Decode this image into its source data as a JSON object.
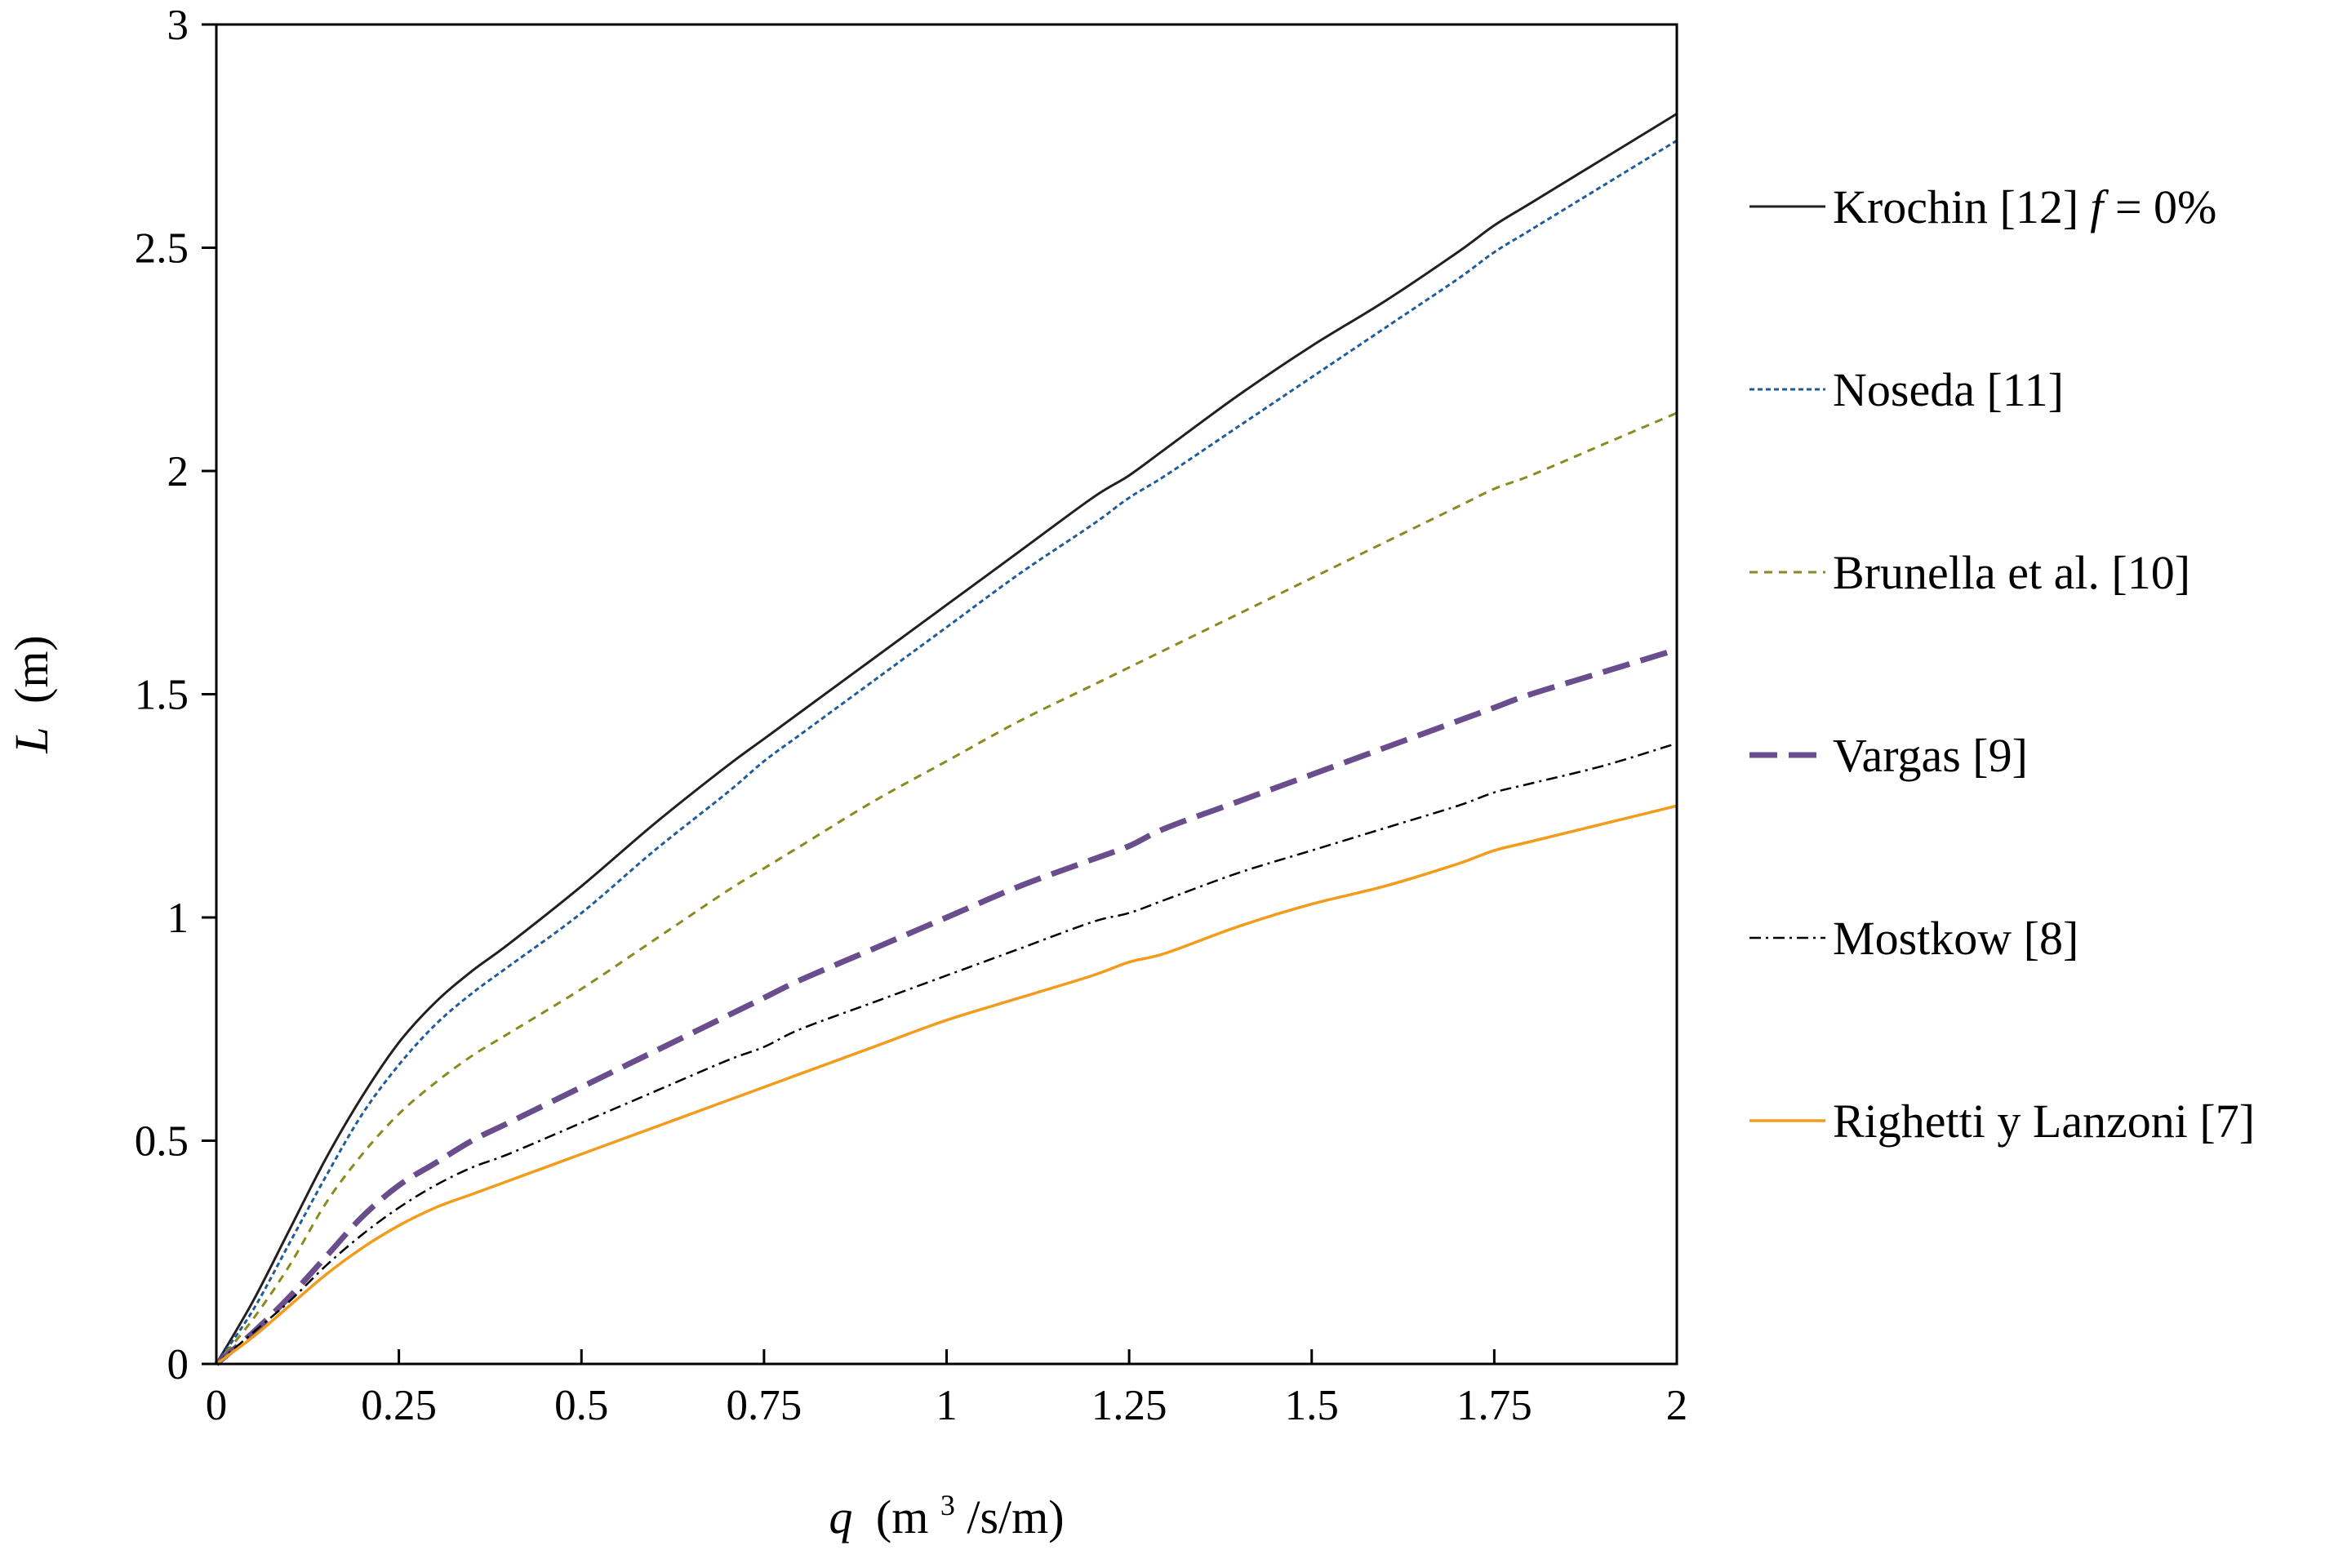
{
  "chart_data": {
    "type": "line",
    "title": "",
    "xlabel": {
      "var": "q",
      "unit_pre": "(m",
      "unit_sup": "3",
      "unit_post": "/s/m)"
    },
    "ylabel": {
      "var": "L",
      "unit": "(m)"
    },
    "xlim": [
      0,
      2
    ],
    "ylim": [
      0,
      3
    ],
    "xticks": [
      0,
      0.25,
      0.5,
      0.75,
      1,
      1.25,
      1.5,
      1.75,
      2
    ],
    "xtick_labels": [
      "0",
      "0.25",
      "0.5",
      "0.75",
      "1",
      "1.25",
      "1.5",
      "1.75",
      "2"
    ],
    "yticks": [
      0,
      0.5,
      1,
      1.5,
      2,
      2.5,
      3
    ],
    "ytick_labels": [
      "0",
      "0.5",
      "1",
      "1.5",
      "2",
      "2.5",
      "3"
    ],
    "grid": false,
    "legend_position": "right",
    "x": [
      0,
      0.05,
      0.1,
      0.15,
      0.2,
      0.25,
      0.3,
      0.35,
      0.4,
      0.5,
      0.6,
      0.7,
      0.75,
      0.8,
      0.9,
      1.0,
      1.1,
      1.2,
      1.25,
      1.3,
      1.4,
      1.5,
      1.6,
      1.7,
      1.75,
      1.8,
      1.9,
      2.0
    ],
    "series": [
      {
        "name": "Krochin [12]",
        "name_suffix_italic": "f",
        "name_suffix": " = 0%",
        "color": "#231f20",
        "dash": "",
        "width": 3,
        "values": [
          0,
          0.14,
          0.3,
          0.46,
          0.6,
          0.72,
          0.81,
          0.88,
          0.94,
          1.07,
          1.21,
          1.34,
          1.4,
          1.46,
          1.58,
          1.7,
          1.82,
          1.94,
          1.99,
          2.05,
          2.17,
          2.28,
          2.38,
          2.49,
          2.55,
          2.6,
          2.7,
          2.8
        ]
      },
      {
        "name": "Noseda [11]",
        "color": "#1f5c99",
        "dash": "6,4",
        "width": 3,
        "values": [
          0,
          0.12,
          0.27,
          0.42,
          0.56,
          0.67,
          0.76,
          0.83,
          0.89,
          1.01,
          1.15,
          1.28,
          1.35,
          1.41,
          1.53,
          1.65,
          1.77,
          1.88,
          1.94,
          1.99,
          2.1,
          2.21,
          2.32,
          2.43,
          2.49,
          2.54,
          2.64,
          2.74
        ]
      },
      {
        "name": "Brunella et al. [10]",
        "color": "#8a8a1e",
        "dash": "10,8",
        "width": 3,
        "values": [
          0,
          0.1,
          0.22,
          0.36,
          0.47,
          0.56,
          0.63,
          0.69,
          0.74,
          0.84,
          0.95,
          1.06,
          1.11,
          1.16,
          1.26,
          1.35,
          1.44,
          1.52,
          1.56,
          1.6,
          1.68,
          1.76,
          1.84,
          1.92,
          1.96,
          1.99,
          2.06,
          2.13
        ]
      },
      {
        "name": "Vargas [9]",
        "color": "#6a4d8c",
        "dash": "34,14",
        "width": 7,
        "values": [
          0,
          0.07,
          0.15,
          0.24,
          0.33,
          0.4,
          0.45,
          0.5,
          0.54,
          0.62,
          0.7,
          0.78,
          0.82,
          0.86,
          0.93,
          1.0,
          1.07,
          1.13,
          1.16,
          1.2,
          1.26,
          1.32,
          1.38,
          1.44,
          1.47,
          1.5,
          1.55,
          1.6
        ]
      },
      {
        "name": "Mostkow [8]",
        "color": "#000000",
        "dash": "14,6,3,6",
        "width": 2.5,
        "values": [
          0,
          0.07,
          0.14,
          0.22,
          0.29,
          0.35,
          0.4,
          0.44,
          0.47,
          0.54,
          0.61,
          0.68,
          0.71,
          0.75,
          0.81,
          0.87,
          0.93,
          0.99,
          1.01,
          1.04,
          1.1,
          1.15,
          1.2,
          1.25,
          1.28,
          1.3,
          1.34,
          1.39
        ]
      },
      {
        "name": "Righetti y Lanzoni [7]",
        "color": "#f39c1c",
        "dash": "",
        "width": 3.5,
        "values": [
          0,
          0.06,
          0.13,
          0.2,
          0.26,
          0.31,
          0.35,
          0.38,
          0.41,
          0.47,
          0.53,
          0.59,
          0.62,
          0.65,
          0.71,
          0.77,
          0.82,
          0.87,
          0.9,
          0.92,
          0.98,
          1.03,
          1.07,
          1.12,
          1.15,
          1.17,
          1.21,
          1.25
        ]
      }
    ]
  }
}
